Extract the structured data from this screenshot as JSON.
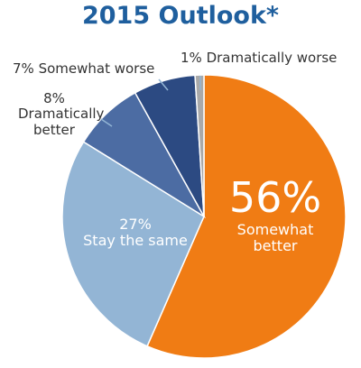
{
  "chart_data": {
    "type": "pie",
    "title": "2015 Outlook*",
    "categories": [
      "Somewhat better",
      "Stay the same",
      "Dramatically better",
      "Somewhat worse",
      "Dramatically worse"
    ],
    "values": [
      56,
      27,
      8,
      7,
      1
    ],
    "value_labels": [
      "56%",
      "27%",
      "8%",
      "7%",
      "1%"
    ],
    "colors": [
      "#f07c14",
      "#93b5d5",
      "#4c6ca3",
      "#2c4a82",
      "#a9a9a9"
    ]
  }
}
